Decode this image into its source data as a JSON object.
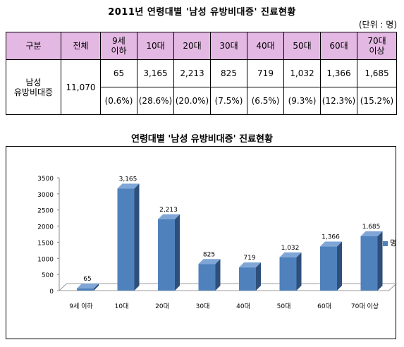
{
  "table": {
    "title": "2011년 연령대별 '남성 유방비대증' 진료현황",
    "unit": "(단위 : 명)",
    "headers": [
      "구분",
      "전체",
      "9세\n이하",
      "10대",
      "20대",
      "30대",
      "40대",
      "50대",
      "60대",
      "70대\n이상"
    ],
    "row_label": "남성\n유방비대증",
    "total": "11,070",
    "counts": [
      "65",
      "3,165",
      "2,213",
      "825",
      "719",
      "1,032",
      "1,366",
      "1,685"
    ],
    "percents": [
      "(0.6%)",
      "(28.6%)",
      "(20.0%)",
      "(7.5%)",
      "(6.5%)",
      "(9.3%)",
      "(12.3%)",
      "(15.2%)"
    ]
  },
  "chart_title": "연령대별 '남성 유방비대증' 진료현황",
  "chart_data": {
    "type": "bar",
    "categories": [
      "9세 이하",
      "10대",
      "20대",
      "30대",
      "40대",
      "50대",
      "60대",
      "70대 이상"
    ],
    "series": [
      {
        "name": "명",
        "values": [
          65,
          3165,
          2213,
          825,
          719,
          1032,
          1366,
          1685
        ]
      }
    ],
    "data_labels": [
      "65",
      "3,165",
      "2,213",
      "825",
      "719",
      "1,032",
      "1,366",
      "1,685"
    ],
    "ylim": [
      0,
      3500
    ],
    "yticks": [
      0,
      500,
      1000,
      1500,
      2000,
      2500,
      3000,
      3500
    ],
    "title": "",
    "xlabel": "",
    "ylabel": "",
    "legend": "right",
    "grid": false,
    "bar_color": "#4f81bd"
  }
}
